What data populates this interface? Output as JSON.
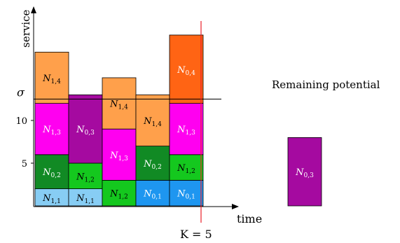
{
  "axes": {
    "y_label": "service",
    "x_label": "time",
    "ticks": [
      {
        "label": "5",
        "value": 5
      },
      {
        "label": "10",
        "value": 10
      }
    ],
    "sigma_label": "σ",
    "sigma_value": 12.5
  },
  "cutoff": {
    "label": "K = 5",
    "after_column": 5,
    "color": "#e8202a"
  },
  "columns": [
    {
      "blocks": [
        {
          "sym": "N",
          "sub": "1,1",
          "height": 2,
          "color": "#87cdf4",
          "text": "dark"
        },
        {
          "sym": "N",
          "sub": "0,2",
          "height": 4,
          "color": "#118a24",
          "text": "light"
        },
        {
          "sym": "N",
          "sub": "1,3",
          "height": 6,
          "color": "#ff00f0",
          "text": "light"
        },
        {
          "sym": "N",
          "sub": "1,4",
          "height": 6,
          "color": "#ffa04b",
          "text": "dark"
        }
      ]
    },
    {
      "blocks": [
        {
          "sym": "N",
          "sub": "1,1",
          "height": 2,
          "color": "#87cdf4",
          "text": "dark"
        },
        {
          "sym": "N",
          "sub": "1,2",
          "height": 3,
          "color": "#14c81e",
          "text": "dark"
        },
        {
          "sym": "N",
          "sub": "0,3",
          "height": 8,
          "color": "#a50aa0",
          "text": "light"
        }
      ]
    },
    {
      "blocks": [
        {
          "sym": "N",
          "sub": "1,2",
          "height": 3,
          "color": "#14c81e",
          "text": "dark"
        },
        {
          "sym": "N",
          "sub": "1,3",
          "height": 6,
          "color": "#ff00f0",
          "text": "light"
        },
        {
          "sym": "N",
          "sub": "1,4",
          "height": 6,
          "color": "#ffa04b",
          "text": "dark"
        }
      ]
    },
    {
      "blocks": [
        {
          "sym": "N",
          "sub": "0,1",
          "height": 3,
          "color": "#1e96f0",
          "text": "light"
        },
        {
          "sym": "N",
          "sub": "0,2",
          "height": 4,
          "color": "#118a24",
          "text": "light"
        },
        {
          "sym": "N",
          "sub": "1,4",
          "height": 6,
          "color": "#ffa04b",
          "text": "dark"
        }
      ]
    },
    {
      "blocks": [
        {
          "sym": "N",
          "sub": "0,1",
          "height": 3,
          "color": "#1e96f0",
          "text": "light"
        },
        {
          "sym": "N",
          "sub": "1,2",
          "height": 3,
          "color": "#14c81e",
          "text": "dark"
        },
        {
          "sym": "N",
          "sub": "1,3",
          "height": 6,
          "color": "#ff00f0",
          "text": "light"
        },
        {
          "sym": "N",
          "sub": "0,4",
          "height": 8,
          "color": "#ff6414",
          "text": "light"
        }
      ]
    }
  ],
  "remaining": {
    "label": "Remaining potential",
    "block": {
      "sym": "N",
      "sub": "0,3",
      "height": 8,
      "color": "#a50aa0",
      "text": "light"
    }
  }
}
